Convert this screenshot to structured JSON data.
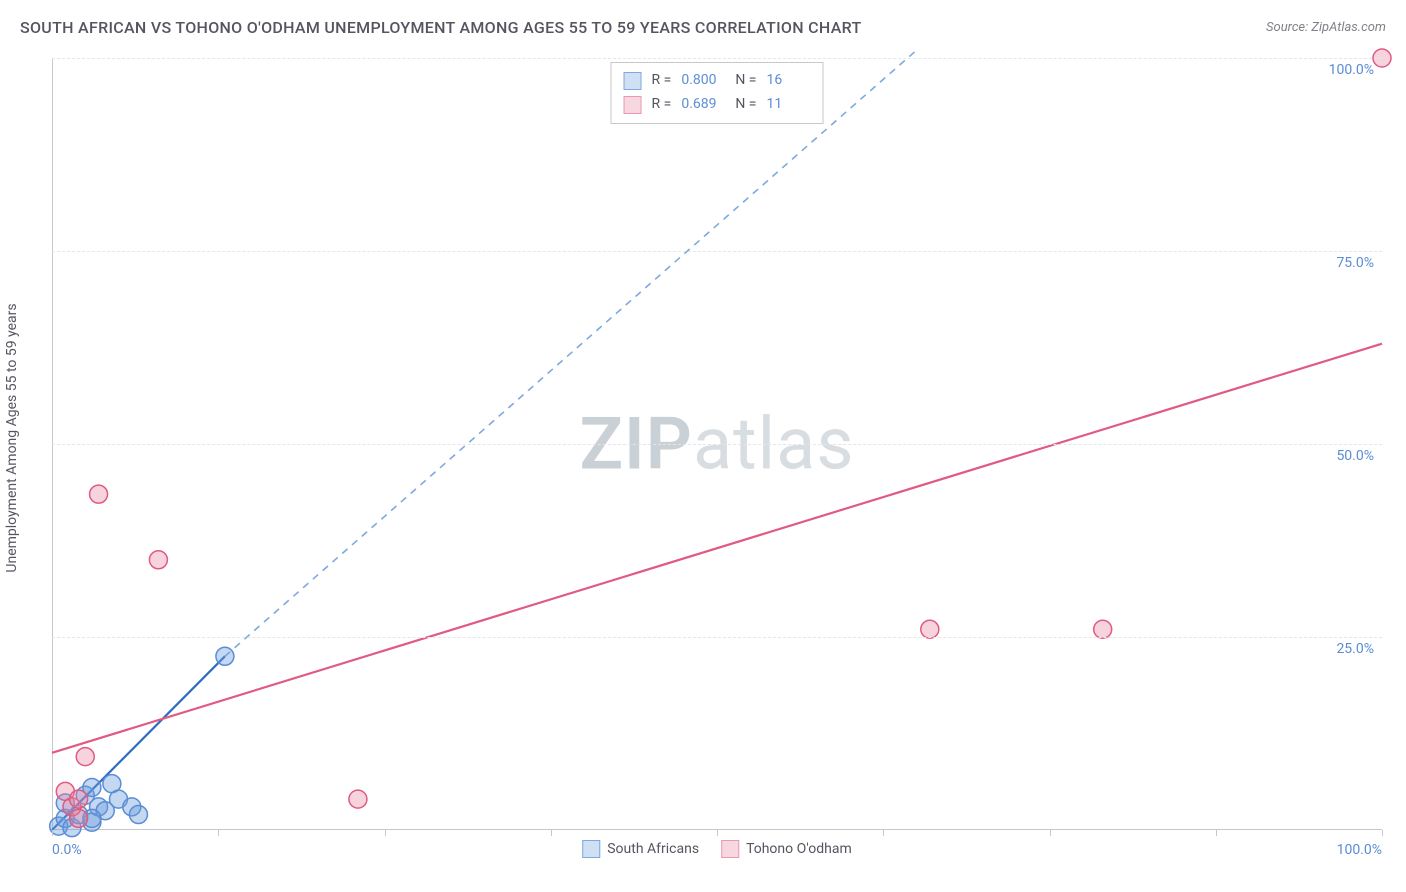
{
  "title": "SOUTH AFRICAN VS TOHONO O'ODHAM UNEMPLOYMENT AMONG AGES 55 TO 59 YEARS CORRELATION CHART",
  "source": "Source: ZipAtlas.com",
  "watermark_a": "ZIP",
  "watermark_b": "atlas",
  "y_axis_label": "Unemployment Among Ages 55 to 59 years",
  "chart": {
    "type": "scatter",
    "xlim": [
      0,
      100
    ],
    "ylim": [
      0,
      100
    ],
    "x_ticks": [
      0,
      12.5,
      25,
      37.5,
      50,
      62.5,
      75,
      87.5,
      100
    ],
    "x_tick_labels": {
      "0": "0.0%",
      "100": "100.0%"
    },
    "y_gridlines": [
      25,
      50,
      75,
      100
    ],
    "y_tick_labels": {
      "25": "25.0%",
      "50": "50.0%",
      "75": "75.0%",
      "100": "100.0%"
    },
    "background_color": "#ffffff",
    "grid_color": "#e6e6ea",
    "axis_color": "#c8c8cc",
    "tick_label_color": "#5b8dd6",
    "series": [
      {
        "name": "South Africans",
        "color_fill": "rgba(108,158,221,0.40)",
        "color_stroke": "#5b8dd6",
        "swatch_fill": "#cfe0f4",
        "swatch_border": "#7ea9dd",
        "marker_radius": 9,
        "R": "0.800",
        "N": "16",
        "points": [
          [
            0.5,
            0.5
          ],
          [
            1.0,
            1.5
          ],
          [
            1.0,
            3.5
          ],
          [
            1.5,
            0.3
          ],
          [
            2.0,
            2.0
          ],
          [
            2.5,
            4.5
          ],
          [
            3.0,
            1.0
          ],
          [
            3.0,
            5.5
          ],
          [
            3.5,
            3.0
          ],
          [
            4.0,
            2.5
          ],
          [
            4.5,
            6.0
          ],
          [
            5.0,
            4.0
          ],
          [
            6.0,
            3.0
          ],
          [
            6.5,
            2.0
          ],
          [
            3.0,
            1.5
          ],
          [
            13.0,
            22.5
          ]
        ],
        "trend": {
          "solid_from": [
            0,
            0
          ],
          "solid_to": [
            13,
            22.5
          ],
          "dashed_from": [
            13,
            22.5
          ],
          "dashed_to": [
            65,
            101
          ],
          "color_solid": "#2f6cc0",
          "color_dashed": "#7ea9dd",
          "width": 2.2
        }
      },
      {
        "name": "Tohono O'odham",
        "color_fill": "rgba(231,128,158,0.35)",
        "color_stroke": "#e05a82",
        "swatch_fill": "#f7d8e1",
        "swatch_border": "#ea98b0",
        "marker_radius": 9,
        "R": "0.689",
        "N": "11",
        "points": [
          [
            1.0,
            5.0
          ],
          [
            1.5,
            3.0
          ],
          [
            2.0,
            1.5
          ],
          [
            2.5,
            9.5
          ],
          [
            2.0,
            4.0
          ],
          [
            3.5,
            43.5
          ],
          [
            8.0,
            35.0
          ],
          [
            23.0,
            4.0
          ],
          [
            66.0,
            26.0
          ],
          [
            79.0,
            26.0
          ],
          [
            100.0,
            100.0
          ]
        ],
        "trend": {
          "solid_from": [
            0,
            10
          ],
          "solid_to": [
            100,
            63
          ],
          "color_solid": "#e05a82",
          "width": 2.2
        }
      }
    ]
  },
  "stats_legend": {
    "label_R": "R =",
    "label_N": "N ="
  }
}
